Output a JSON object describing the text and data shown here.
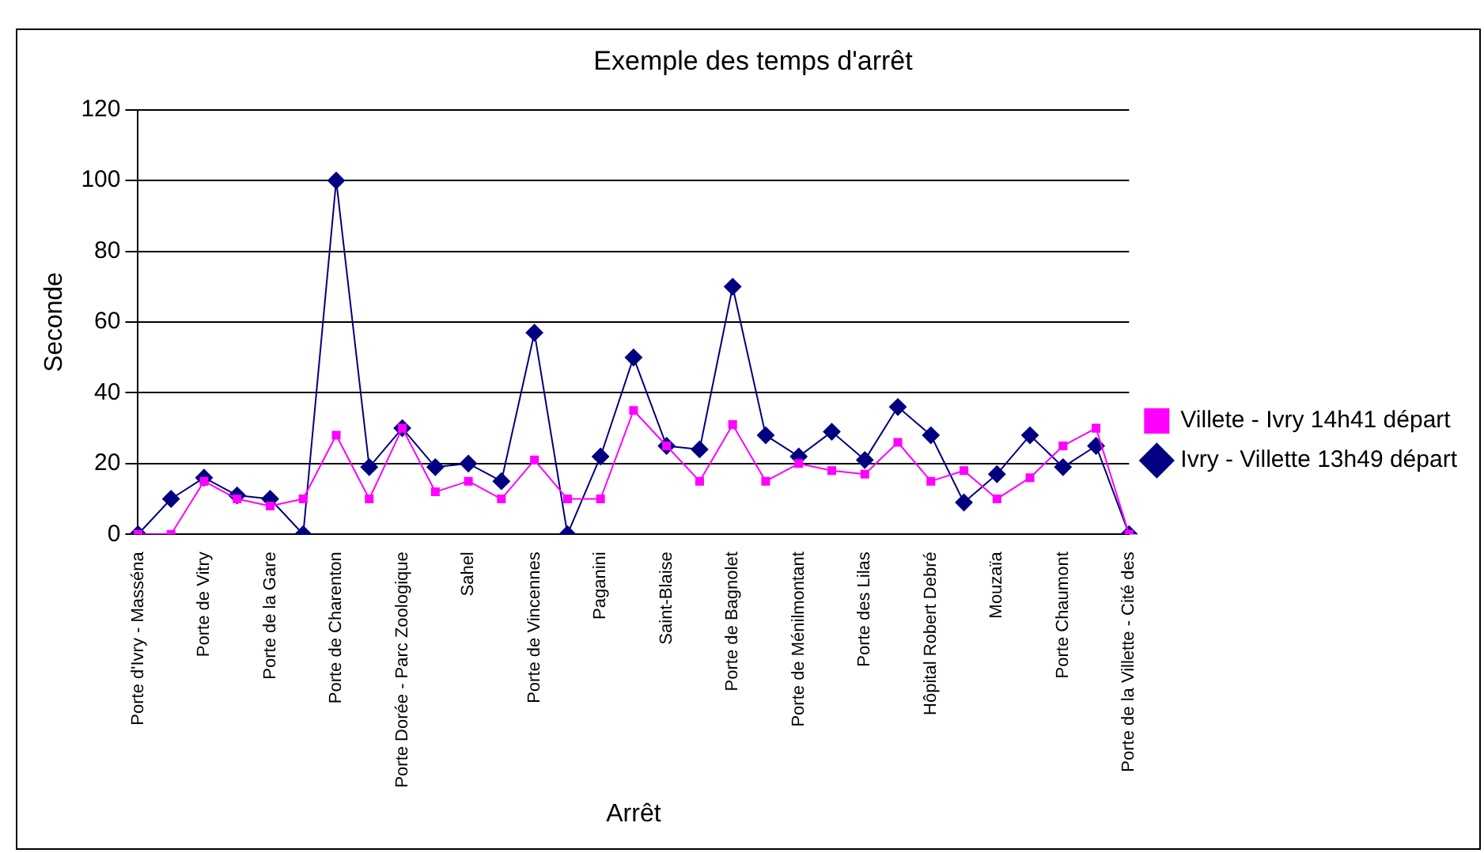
{
  "chart_data": {
    "type": "line",
    "title": "Exemple des temps d'arrêt",
    "xlabel": "Arrêt",
    "ylabel": "Seconde",
    "categories": [
      "Porte d'Ivry - Masséna",
      null,
      "Porte de Vitry",
      null,
      "Porte de la Gare",
      null,
      "Porte de Charenton",
      null,
      "Porte Dorée - Parc Zoologique",
      null,
      "Sahel",
      null,
      "Porte de Vincennes",
      null,
      "Paganini",
      null,
      "Saint-Blaise",
      null,
      "Porte de Bagnolet",
      null,
      "Porte de Ménilmontant",
      null,
      "Porte des Lilas",
      null,
      "Hôpital Robert Debré",
      null,
      "Mouzaïa",
      null,
      "Porte Chaumont",
      null,
      "Porte de la Villette - Cité des"
    ],
    "series": [
      {
        "name": "Ivry - Villette 13h49 départ",
        "color": "#000080",
        "marker": "diamond",
        "values": [
          0,
          10,
          16,
          11,
          10,
          0,
          100,
          19,
          30,
          19,
          20,
          15,
          57,
          0,
          22,
          50,
          25,
          24,
          70,
          28,
          22,
          29,
          21,
          36,
          28,
          9,
          17,
          28,
          19,
          25,
          0
        ]
      },
      {
        "name": "Villete - Ivry 14h41 départ",
        "color": "#ff00ff",
        "marker": "square",
        "values": [
          0,
          0,
          15,
          10,
          8,
          10,
          28,
          10,
          30,
          12,
          15,
          10,
          21,
          10,
          10,
          35,
          25,
          15,
          31,
          15,
          20,
          18,
          17,
          26,
          15,
          18,
          10,
          16,
          25,
          30,
          0
        ]
      }
    ],
    "ylim": [
      0,
      120
    ],
    "yticks": [
      0,
      20,
      40,
      60,
      80,
      100,
      120
    ],
    "grid": "y",
    "legend": "right",
    "line_style": "solid"
  }
}
